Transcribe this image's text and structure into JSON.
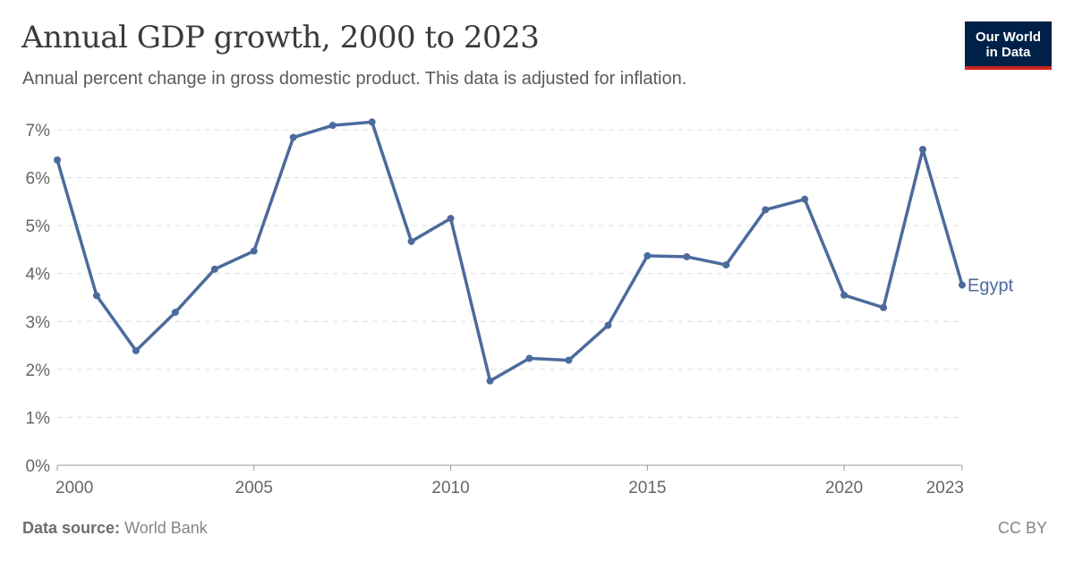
{
  "header": {
    "title": "Annual GDP growth, 2000 to 2023",
    "subtitle": "Annual percent change in gross domestic product. This data is adjusted for inflation."
  },
  "logo": {
    "line1": "Our World",
    "line2": "in Data"
  },
  "footer": {
    "source_label": "Data source:",
    "source_value": "World Bank",
    "license": "CC BY"
  },
  "chart_data": {
    "type": "line",
    "title": "Annual GDP growth, 2000 to 2023",
    "subtitle": "Annual percent change in gross domestic product. This data is adjusted for inflation.",
    "xlim": [
      2000,
      2023
    ],
    "ylim": [
      0,
      7
    ],
    "x_ticks": [
      2000,
      2005,
      2010,
      2015,
      2020,
      2023
    ],
    "y_ticks": [
      "0%",
      "1%",
      "2%",
      "3%",
      "4%",
      "5%",
      "6%",
      "7%"
    ],
    "grid": "horizontal dashed",
    "line_color": "#4c6a9c",
    "series": [
      {
        "name": "Egypt",
        "x": [
          2000,
          2001,
          2002,
          2003,
          2004,
          2005,
          2006,
          2007,
          2008,
          2009,
          2010,
          2011,
          2012,
          2013,
          2014,
          2015,
          2016,
          2017,
          2018,
          2019,
          2020,
          2021,
          2022,
          2023
        ],
        "values": [
          6.37,
          3.54,
          2.39,
          3.19,
          4.09,
          4.47,
          6.84,
          7.09,
          7.16,
          4.67,
          5.15,
          1.76,
          2.23,
          2.19,
          2.92,
          4.37,
          4.35,
          4.18,
          5.33,
          5.55,
          3.55,
          3.29,
          6.59,
          3.76
        ]
      }
    ]
  }
}
